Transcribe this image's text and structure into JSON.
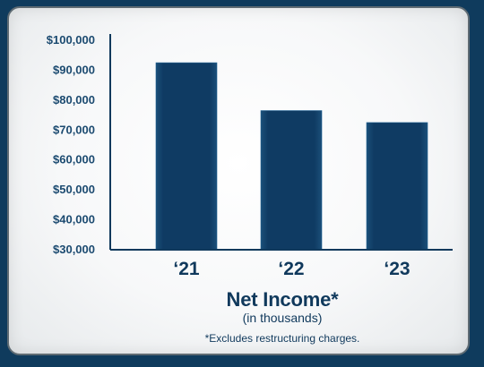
{
  "chart_data": {
    "type": "bar",
    "title": "Net Income*",
    "subtitle": "(in thousands)",
    "footnote": "*Excludes restructuring charges.",
    "categories": [
      "‘21",
      "‘22",
      "‘23"
    ],
    "values": [
      92500,
      76500,
      72500
    ],
    "ylim": [
      30000,
      100000
    ],
    "yticks": [
      {
        "value": 100000,
        "label": "$100,000"
      },
      {
        "value": 90000,
        "label": "$90,000"
      },
      {
        "value": 80000,
        "label": "$80,000"
      },
      {
        "value": 70000,
        "label": "$70,000"
      },
      {
        "value": 60000,
        "label": "$60,000"
      },
      {
        "value": 50000,
        "label": "$50,000"
      },
      {
        "value": 40000,
        "label": "$40,000"
      },
      {
        "value": 30000,
        "label": "$30,000"
      }
    ],
    "xlabel": "",
    "ylabel": "",
    "grid": false,
    "legend": "none",
    "colors": {
      "bar": "#0f3b63",
      "bar_edge": "#1d5f91",
      "axis": "#10395c",
      "background": "#0f3b5d",
      "panel": "#f7f8f9"
    }
  }
}
